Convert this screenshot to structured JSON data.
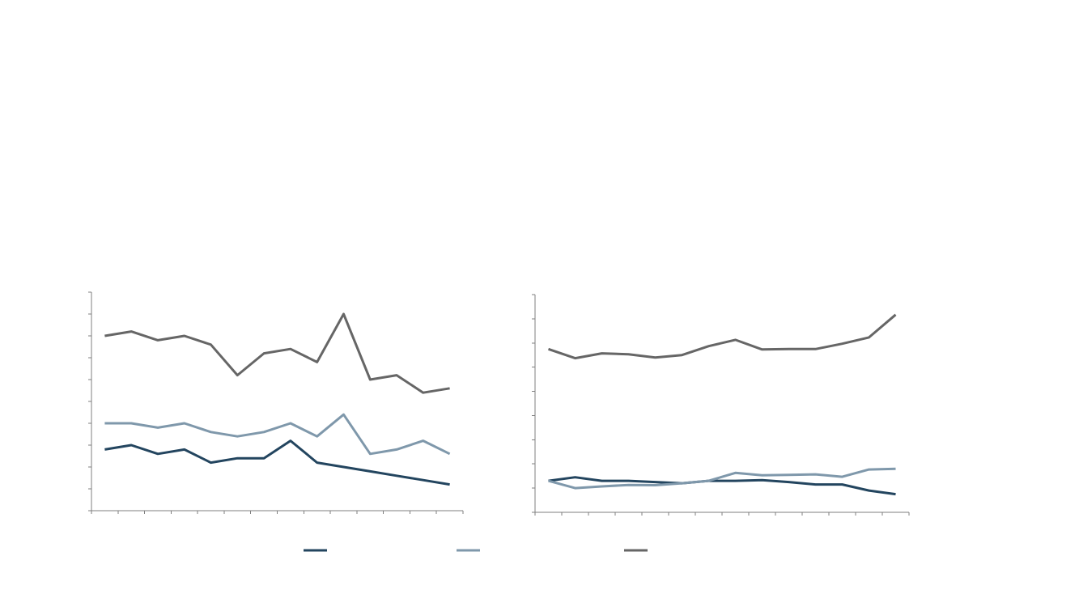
{
  "colors": {
    "series_1": "#23455f",
    "series_2": "#7f98ab",
    "series_3": "#666666",
    "axis": "#7f7f7f"
  },
  "chart_data": [
    {
      "type": "line",
      "title": "",
      "xlabel": "",
      "ylabel": "",
      "grid": false,
      "ylim": [
        0,
        10
      ],
      "x": [
        0,
        1,
        2,
        3,
        4,
        5,
        6,
        7,
        8,
        9,
        10,
        11,
        12,
        13
      ],
      "series": [
        {
          "color_key": "series_1",
          "values": [
            2.8,
            3.0,
            2.6,
            2.8,
            2.2,
            2.4,
            2.4,
            3.2,
            2.2,
            2.0,
            1.8,
            1.6,
            1.4,
            1.2
          ]
        },
        {
          "color_key": "series_2",
          "values": [
            4.0,
            4.0,
            3.8,
            4.0,
            3.6,
            3.4,
            3.6,
            4.0,
            3.4,
            4.4,
            2.6,
            2.8,
            3.2,
            2.6
          ]
        },
        {
          "color_key": "series_3",
          "values": [
            8.0,
            8.2,
            7.8,
            8.0,
            7.6,
            6.2,
            7.2,
            7.4,
            6.8,
            9.0,
            6.0,
            6.2,
            5.4,
            5.6
          ]
        }
      ]
    },
    {
      "type": "line",
      "title": "",
      "xlabel": "",
      "ylabel": "",
      "grid": false,
      "ylim": [
        0,
        9
      ],
      "x": [
        0,
        1,
        2,
        3,
        4,
        5,
        6,
        7,
        8,
        9,
        10,
        11,
        12,
        13
      ],
      "series": [
        {
          "color_key": "series_1",
          "values": [
            1.3,
            1.45,
            1.3,
            1.3,
            1.25,
            1.2,
            1.3,
            1.3,
            1.33,
            1.25,
            1.15,
            1.15,
            0.9,
            0.75
          ]
        },
        {
          "color_key": "series_2",
          "values": [
            1.3,
            1.0,
            1.07,
            1.13,
            1.12,
            1.2,
            1.3,
            1.63,
            1.53,
            1.55,
            1.57,
            1.47,
            1.77,
            1.8
          ]
        },
        {
          "color_key": "series_3",
          "values": [
            6.75,
            6.37,
            6.57,
            6.53,
            6.4,
            6.5,
            6.87,
            7.13,
            6.73,
            6.75,
            6.75,
            6.97,
            7.23,
            8.17
          ]
        }
      ]
    }
  ],
  "legend": {
    "placement": "bottom-center",
    "items": [
      {
        "color_key": "series_1",
        "label": ""
      },
      {
        "color_key": "series_2",
        "label": ""
      },
      {
        "color_key": "series_3",
        "label": ""
      }
    ]
  }
}
